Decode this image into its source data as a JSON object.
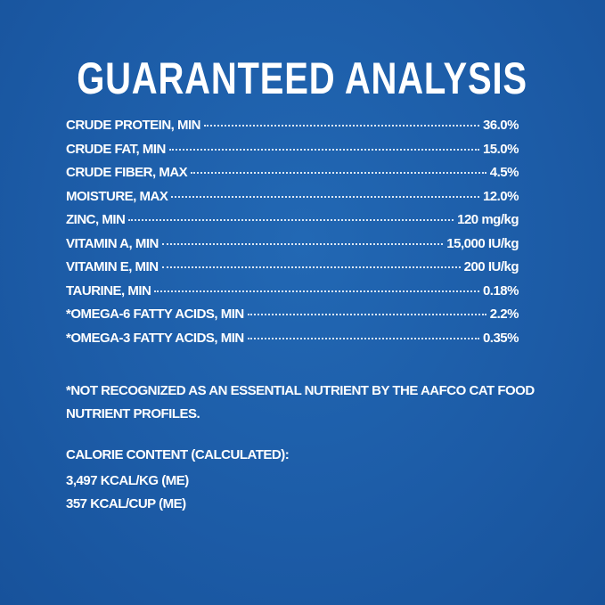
{
  "title": "GUARANTEED ANALYSIS",
  "rows": [
    {
      "label": "CRUDE PROTEIN, MIN",
      "value": "36.0%"
    },
    {
      "label": "CRUDE FAT, MIN",
      "value": "15.0%"
    },
    {
      "label": "CRUDE FIBER, MAX",
      "value": "4.5%"
    },
    {
      "label": "MOISTURE, MAX",
      "value": "12.0%"
    },
    {
      "label": "ZINC, MIN",
      "value": "120 mg/kg"
    },
    {
      "label": "VITAMIN A, MIN",
      "value": "15,000 IU/kg"
    },
    {
      "label": "VITAMIN E, MIN",
      "value": "200 IU/kg"
    },
    {
      "label": "TAURINE, MIN",
      "value": "0.18%"
    },
    {
      "label": "*OMEGA-6 FATTY ACIDS, MIN",
      "value": "2.2%"
    },
    {
      "label": "*OMEGA-3 FATTY ACIDS, MIN",
      "value": "0.35%"
    }
  ],
  "footnote": "*NOT RECOGNIZED AS AN ESSENTIAL NUTRIENT BY THE AAFCO CAT FOOD NUTRIENT PROFILES.",
  "calorie": {
    "heading": "CALORIE CONTENT (CALCULATED):",
    "lines": [
      "3,497 KCAL/KG (ME)",
      "357 KCAL/CUP (ME)"
    ]
  }
}
